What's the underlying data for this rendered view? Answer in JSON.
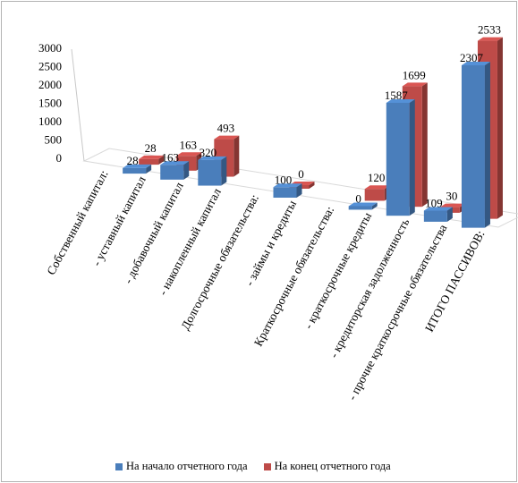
{
  "chart_data": {
    "type": "bar",
    "categories": [
      "Собственный капитал:",
      "- уставный капитал",
      "- добавочный капитал",
      "- накопленный капитал",
      "Долгосрочные обязательства:",
      "- займы и кредиты",
      "Краткосрочные обязательства:",
      "- краткосрочные кредиты",
      "- кредиторская задолженность",
      "- прочие краткосрочные обязательства",
      "ИТОГО ПАССИВОВ:"
    ],
    "series": [
      {
        "name": "На начало отчетного года",
        "color": "#4a7ebb",
        "values": [
          null,
          28,
          163,
          320,
          null,
          100,
          null,
          0,
          1587,
          109,
          2307
        ],
        "labels": [
          "",
          "28",
          "163",
          "320",
          "",
          "100",
          "",
          "0",
          "1587",
          "109",
          "2307"
        ]
      },
      {
        "name": "На конец отчетного года",
        "color": "#be4b48",
        "values": [
          null,
          28,
          163,
          493,
          null,
          0,
          null,
          120,
          1699,
          30,
          2533
        ],
        "labels": [
          "",
          "28",
          "163",
          "493",
          "",
          "0",
          "",
          "120",
          "1699",
          "30",
          "2533"
        ]
      }
    ],
    "y_ticks": [
      "0",
      "500",
      "1000",
      "1500",
      "2000",
      "2500",
      "3000"
    ],
    "ylim": [
      0,
      3000
    ],
    "grid": false,
    "legend_position": "bottom"
  }
}
